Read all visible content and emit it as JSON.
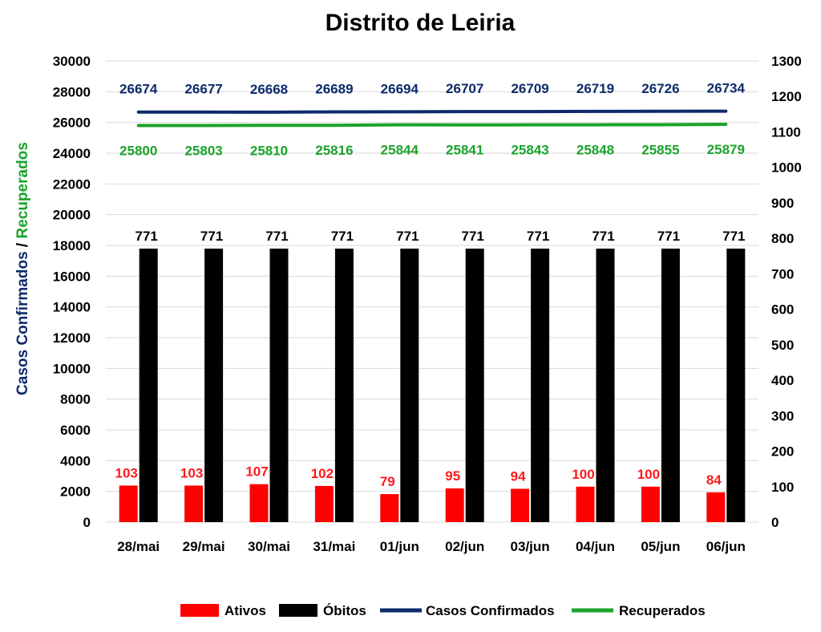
{
  "chart_data": {
    "type": "bar",
    "title": "Distrito de Leiria",
    "ylabel_left": [
      "Casos Confirmados",
      " / ",
      "Recuperados"
    ],
    "categories": [
      "28/mai",
      "29/mai",
      "30/mai",
      "31/mai",
      "01/jun",
      "02/jun",
      "03/jun",
      "04/jun",
      "05/jun",
      "06/jun"
    ],
    "y_left": {
      "min": 0,
      "max": 30000,
      "step": 2000
    },
    "y_right": {
      "min": 0,
      "max": 1300,
      "step": 100
    },
    "series": [
      {
        "name": "Ativos",
        "kind": "bar",
        "axis": "right",
        "color": "#ff0000",
        "label_color": "#ff1a1a",
        "values": [
          103,
          103,
          107,
          102,
          79,
          95,
          94,
          100,
          100,
          84
        ]
      },
      {
        "name": "Óbitos",
        "kind": "bar",
        "axis": "right",
        "color": "#000000",
        "label_color": "#000000",
        "values": [
          771,
          771,
          771,
          771,
          771,
          771,
          771,
          771,
          771,
          771
        ]
      },
      {
        "name": "Casos Confirmados",
        "kind": "line",
        "axis": "left",
        "color": "#0d2a6b",
        "label_color": "#0d2a6b",
        "values": [
          26674,
          26677,
          26668,
          26689,
          26694,
          26707,
          26709,
          26719,
          26726,
          26734
        ]
      },
      {
        "name": "Recuperados",
        "kind": "line",
        "axis": "left",
        "color": "#1aa32a",
        "label_color": "#1aa32a",
        "values": [
          25800,
          25803,
          25810,
          25816,
          25844,
          25841,
          25843,
          25848,
          25855,
          25879
        ]
      }
    ],
    "grid": true,
    "legend_position": "bottom"
  }
}
